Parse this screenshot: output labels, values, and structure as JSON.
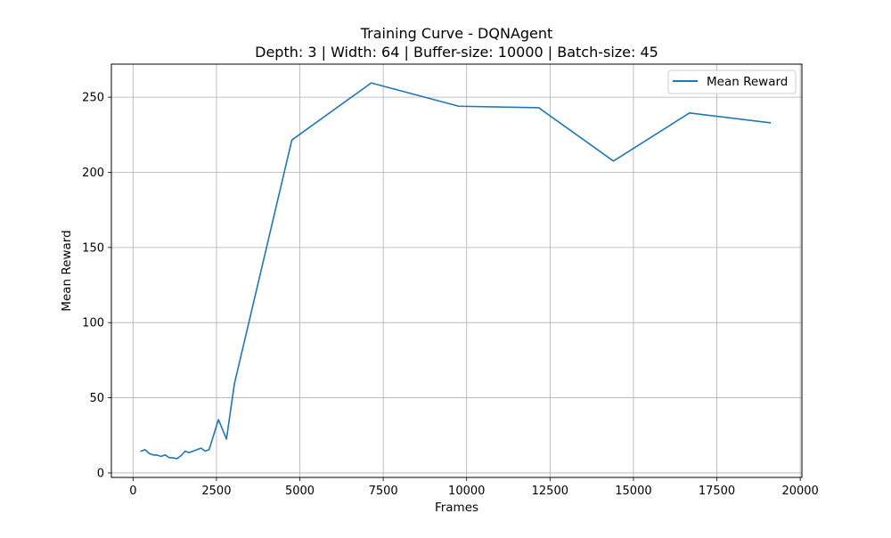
{
  "chart_data": {
    "type": "line",
    "title": "Training Curve - DQNAgent",
    "subtitle": "Depth: 3 | Width: 64 | Buffer-size: 10000 | Batch-size: 45",
    "xlabel": "Frames",
    "ylabel": "Mean Reward",
    "xlim": [
      -650,
      20050
    ],
    "ylim": [
      -3,
      272
    ],
    "x_ticks": [
      0,
      2500,
      5000,
      7500,
      10000,
      12500,
      15000,
      17500,
      20000
    ],
    "y_ticks": [
      0,
      50,
      100,
      150,
      200,
      250
    ],
    "grid": true,
    "legend_position": "top-right",
    "series": [
      {
        "name": "Mean Reward",
        "color": "#1f77b4",
        "x": [
          240,
          360,
          480,
          600,
          720,
          840,
          960,
          1080,
          1200,
          1320,
          1440,
          1560,
          1680,
          1800,
          1920,
          2040,
          2160,
          2280,
          2560,
          2800,
          3040,
          4760,
          7140,
          9760,
          12160,
          14400,
          16680,
          19100
        ],
        "y": [
          14.5,
          15.5,
          13,
          12,
          11.8,
          11,
          12,
          10.2,
          10,
          9.5,
          11.5,
          14.5,
          13.5,
          14.5,
          15.5,
          16.5,
          14.5,
          15.5,
          35.5,
          22.5,
          59.5,
          221.5,
          259.5,
          244,
          243,
          207.5,
          239.5,
          233
        ]
      }
    ]
  }
}
